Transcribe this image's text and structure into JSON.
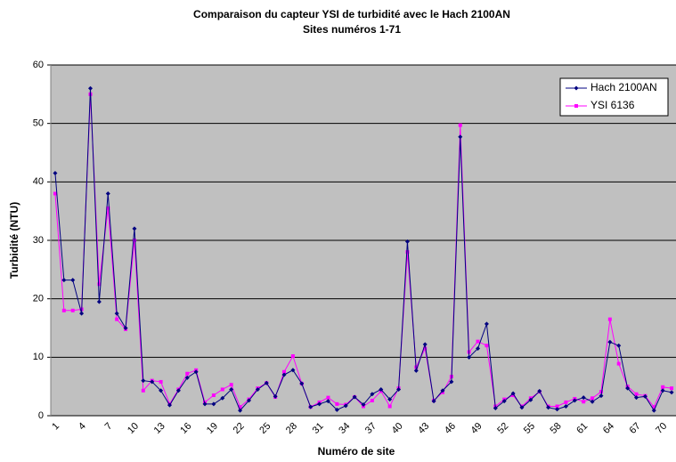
{
  "chart_data": {
    "type": "line",
    "title": "Comparaison du capteur YSI de turbidité avec le Hach 2100AN",
    "subtitle": "Sites numéros 1-71",
    "x_label": "Numéro de site",
    "y_label": "Turbidité (NTU)",
    "categories": [
      "1",
      null,
      null,
      "4",
      null,
      null,
      "7",
      null,
      null,
      "10",
      null,
      null,
      "13",
      null,
      null,
      "16",
      null,
      null,
      "19",
      null,
      null,
      "22",
      null,
      null,
      "25",
      null,
      null,
      "28",
      null,
      null,
      "31",
      null,
      null,
      "34",
      null,
      null,
      "37",
      null,
      null,
      "40",
      null,
      null,
      "43",
      null,
      null,
      "46",
      null,
      null,
      "49",
      null,
      null,
      "52",
      null,
      null,
      "55",
      null,
      null,
      "58",
      null,
      null,
      "61",
      null,
      null,
      "64",
      null,
      null,
      "67",
      null,
      null,
      "70",
      null
    ],
    "series": [
      {
        "name": "Hach 2100AN",
        "color": "#000080",
        "marker": "diamond",
        "values": [
          41.5,
          23.2,
          23.2,
          17.5,
          56,
          19.5,
          38,
          17.5,
          15,
          32,
          6,
          5.8,
          4.3,
          1.8,
          4.3,
          6.5,
          7.5,
          2,
          2,
          3,
          4.5,
          0.9,
          2.6,
          4.5,
          5.6,
          3.3,
          7,
          7.8,
          5.5,
          1.5,
          2,
          2.5,
          1,
          1.7,
          3.2,
          1.9,
          3.7,
          4.5,
          2.8,
          4.5,
          29.8,
          7.7,
          12.2,
          2.5,
          4.3,
          5.8,
          47.7,
          10,
          11.5,
          15.7,
          1.3,
          2.5,
          3.8,
          1.4,
          2.7,
          4.2,
          1.4,
          1.1,
          1.6,
          2.6,
          3.1,
          2.4,
          3.4,
          12.6,
          12,
          4.7,
          3.1,
          3.3,
          0.9,
          4.3,
          4
        ]
      },
      {
        "name": "YSI 6136",
        "color": "#FF00FF",
        "marker": "square",
        "values": [
          38,
          18,
          18,
          18.2,
          55,
          22.5,
          35.5,
          16.5,
          14.8,
          30,
          4.3,
          6,
          5.8,
          2,
          4.5,
          7.2,
          7.8,
          2.3,
          3.5,
          4.5,
          5.3,
          1.5,
          2.8,
          4.7,
          5.6,
          3.2,
          7.5,
          10.2,
          5.5,
          1.5,
          2.3,
          3.1,
          2,
          1.9,
          3.2,
          1.6,
          2.6,
          4.2,
          1.6,
          4.7,
          28,
          8.3,
          11.5,
          2.6,
          4,
          6.7,
          49.7,
          10.9,
          12.7,
          12,
          1.6,
          2.8,
          3.5,
          1.6,
          3,
          4.1,
          1.6,
          1.6,
          2.3,
          2.9,
          2.4,
          3,
          4.1,
          16.5,
          8.9,
          5,
          3.7,
          3.4,
          1.5,
          4.9,
          4.7
        ]
      }
    ],
    "ylim": [
      0,
      60
    ],
    "yticks": [
      0,
      10,
      20,
      30,
      40,
      50,
      60
    ],
    "grid": true,
    "legend": "upper right",
    "plot_background": "#C0C0C0"
  }
}
